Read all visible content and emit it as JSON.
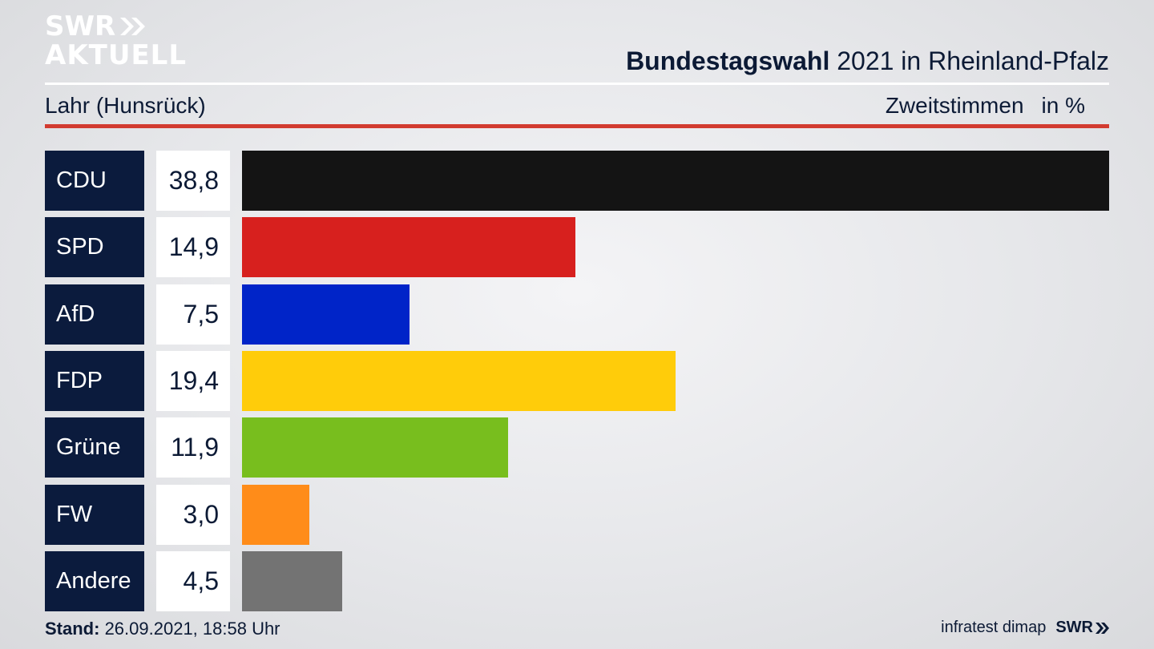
{
  "brand": {
    "line1": "SWR",
    "line2": "AKTUELL"
  },
  "header": {
    "title_bold": "Bundestagswahl",
    "title_rest": " 2021 in Rheinland-Pfalz",
    "region": "Lahr (Hunsrück)",
    "measure": "Zweitstimmen",
    "unit": "in %"
  },
  "chart_data": {
    "type": "bar",
    "orientation": "horizontal",
    "categories": [
      "CDU",
      "SPD",
      "AfD",
      "FDP",
      "Grüne",
      "FW",
      "Andere"
    ],
    "values": [
      38.8,
      14.9,
      7.5,
      19.4,
      11.9,
      3.0,
      4.5
    ],
    "value_labels": [
      "38,8",
      "14,9",
      "7,5",
      "19,4",
      "11,9",
      "3,0",
      "4,5"
    ],
    "colors": [
      "#141414",
      "#d7201e",
      "#0024c8",
      "#ffcc0a",
      "#78be1e",
      "#ff8c19",
      "#737373"
    ],
    "xlim": [
      0,
      38.8
    ]
  },
  "footer": {
    "stand_label": "Stand:",
    "stand_value": " 26.09.2021, 18:58 Uhr",
    "source": "infratest dimap",
    "brand": "SWR"
  }
}
